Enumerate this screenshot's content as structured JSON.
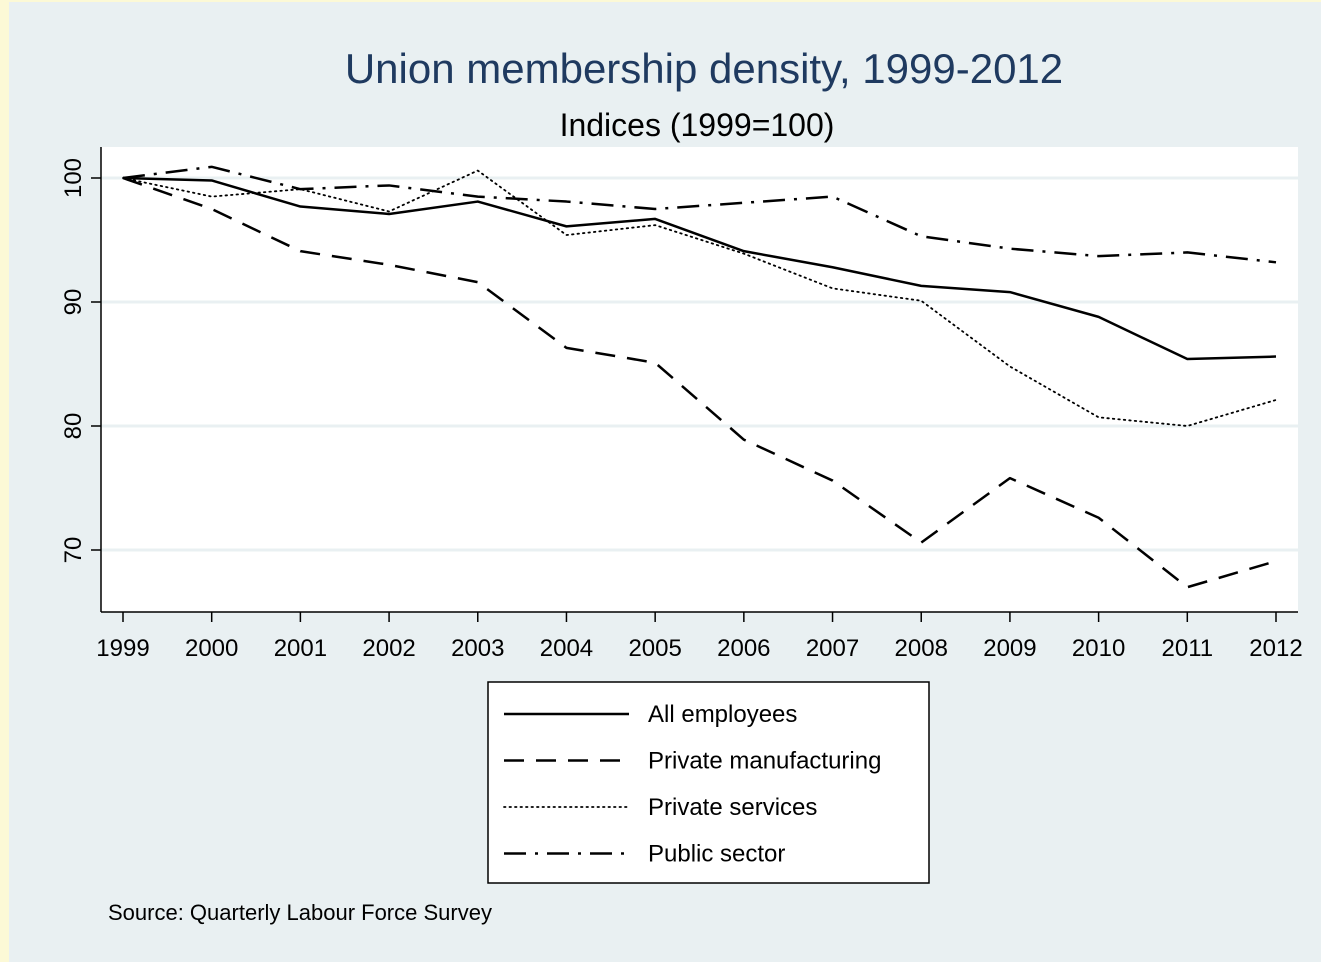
{
  "chart_data": {
    "type": "line",
    "title": "Union membership density, 1999-2012",
    "subtitle": "Indices (1999=100)",
    "xlabel": "",
    "ylabel": "",
    "x": [
      1999,
      2000,
      2001,
      2002,
      2003,
      2004,
      2005,
      2006,
      2007,
      2008,
      2009,
      2010,
      2011,
      2012
    ],
    "x_tick_labels": [
      "1999",
      "2000",
      "2001",
      "2002",
      "2003",
      "2004",
      "2005",
      "2006",
      "2007",
      "2008",
      "2009",
      "2010",
      "2011",
      "2012"
    ],
    "y_ticks": [
      70,
      80,
      90,
      100
    ],
    "y_tick_labels": [
      "70",
      "80",
      "90",
      "100"
    ],
    "xlim": [
      1999,
      2012
    ],
    "ylim": [
      65,
      102.5
    ],
    "grid": "horizontal",
    "legend_position": "bottom",
    "series": [
      {
        "name": "All employees",
        "style": "solid",
        "values": [
          100,
          99.8,
          97.7,
          97.1,
          98.1,
          96.1,
          96.7,
          94.1,
          92.8,
          91.3,
          90.8,
          88.8,
          85.4,
          85.6
        ]
      },
      {
        "name": "Private manufacturing",
        "style": "dashed",
        "values": [
          100,
          97.5,
          94.1,
          93.0,
          91.6,
          86.3,
          85.1,
          78.9,
          75.6,
          70.6,
          75.8,
          72.6,
          67.0,
          69.1
        ]
      },
      {
        "name": "Private services",
        "style": "dotted",
        "values": [
          100,
          98.5,
          99.1,
          97.3,
          100.6,
          95.4,
          96.2,
          93.9,
          91.1,
          90.1,
          84.8,
          80.7,
          80.0,
          82.1
        ]
      },
      {
        "name": "Public sector",
        "style": "dashdot",
        "values": [
          100,
          100.9,
          99.1,
          99.4,
          98.5,
          98.1,
          97.5,
          98.0,
          98.5,
          95.3,
          94.3,
          93.7,
          94.0,
          93.2
        ]
      }
    ],
    "source_note": "Source: Quarterly Labour Force Survey"
  },
  "colors": {
    "page_border": "#fcf9d6",
    "frame_background": "#e9f0f2",
    "plot_background": "#ffffff",
    "gridline": "#e9f0f2",
    "title": "#1f3a60",
    "line": "#000000"
  }
}
